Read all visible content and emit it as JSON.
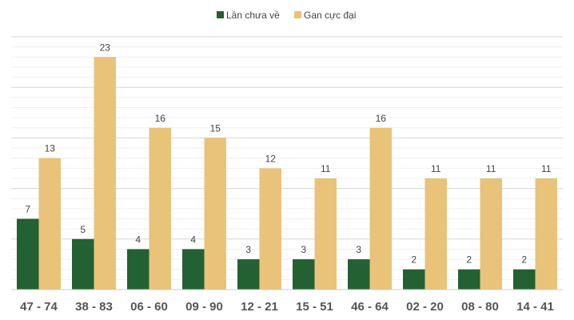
{
  "chart_data": {
    "type": "bar",
    "title": "",
    "xlabel": "",
    "ylabel": "",
    "ylim": [
      0,
      25
    ],
    "grid": true,
    "legend_position": "top-center",
    "categories": [
      "47 - 74",
      "38 - 83",
      "06 - 60",
      "09 - 90",
      "12 - 21",
      "15 - 51",
      "46 - 64",
      "02 - 20",
      "08 - 80",
      "14 - 41"
    ],
    "series": [
      {
        "name": "Lần chưa về",
        "color": "#236133",
        "values": [
          7,
          5,
          4,
          4,
          3,
          3,
          3,
          2,
          2,
          2
        ]
      },
      {
        "name": "Gan cực đại",
        "color": "#e8c379",
        "values": [
          13,
          23,
          16,
          15,
          12,
          11,
          16,
          11,
          11,
          11
        ]
      }
    ]
  }
}
